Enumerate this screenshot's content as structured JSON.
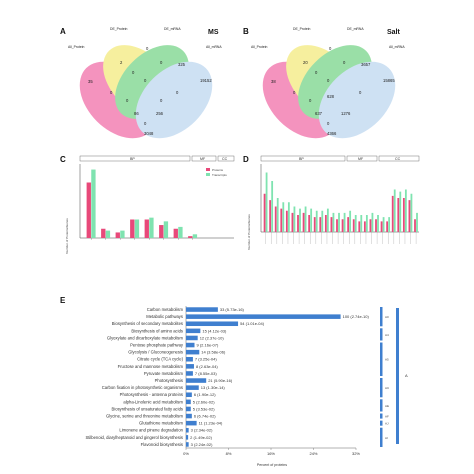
{
  "panel_letters": {
    "a": "A",
    "b": "B",
    "c": "C",
    "d": "D",
    "e": "E"
  },
  "colors": {
    "proteins_bar": "#e8497a",
    "transcripts_bar": "#7fe3b0",
    "pathway_bar": "#3f7fcf",
    "pink": "#f06aa6",
    "yellow": "#f3ea7a",
    "green": "#74d486",
    "blue": "#bcd6ef"
  },
  "venn_a": {
    "condition": "MS",
    "labels": {
      "all_proteins": "All_Protein",
      "de_protein": "DE_Protein",
      "de_mrna": "DE_mRNA",
      "all_mrna": "All_mRNA"
    },
    "numbers": {
      "n1": "35",
      "n2": "2",
      "n3": "0",
      "n4": "0",
      "n5": "0",
      "n6": "325",
      "n7": "19152",
      "n8": "0",
      "n9": "0",
      "n10": "0",
      "n11": "0",
      "n12": "0",
      "n13": "86",
      "n14": "256",
      "n15": "0",
      "n16": "3048"
    }
  },
  "venn_b": {
    "condition": "Salt",
    "labels": {
      "all_proteins": "All_Protein",
      "de_protein": "DE_Protein",
      "de_mrna": "DE_mRNA",
      "all_mrna": "All_mRNA"
    },
    "numbers": {
      "n1": "38",
      "n2": "20",
      "n3": "0",
      "n4": "0",
      "n5": "0",
      "n6": "3657",
      "n7": "15865",
      "n8": "0",
      "n9": "0",
      "n10": "0",
      "n11": "0",
      "n12": "628",
      "n13": "637",
      "n14": "1276",
      "n15": "0",
      "n16": "4366"
    }
  },
  "chart_data": [
    {
      "type": "bar",
      "panel": "C",
      "groups": [
        "BP",
        "MF",
        "CC"
      ],
      "ylabel": "Number of Proteins/Genes",
      "legend": [
        "Proteins",
        "Transcripts"
      ],
      "categories_count": 8,
      "series": [
        {
          "name": "Proteins",
          "values": [
            30,
            5,
            3,
            10,
            10,
            7,
            5,
            1
          ]
        },
        {
          "name": "Transcripts",
          "values": [
            37,
            4,
            4,
            10,
            11,
            9,
            6,
            2
          ]
        }
      ],
      "ylim": [
        0,
        40
      ]
    },
    {
      "type": "bar",
      "panel": "D",
      "groups": [
        "BP",
        "MF",
        "CC"
      ],
      "ylabel": "Number of Proteins/Genes",
      "categories_count": 28,
      "series": [
        {
          "name": "Proteins",
          "values": [
            18,
            15,
            12,
            11,
            10,
            9,
            8,
            9,
            8,
            7,
            7,
            8,
            7,
            6,
            6,
            7,
            6,
            5,
            5,
            6,
            6,
            5,
            5,
            17,
            16,
            16,
            15,
            6
          ]
        },
        {
          "name": "Transcripts",
          "values": [
            28,
            24,
            16,
            14,
            14,
            12,
            11,
            12,
            11,
            10,
            10,
            11,
            9,
            9,
            9,
            10,
            8,
            8,
            8,
            9,
            8,
            7,
            7,
            20,
            19,
            20,
            18,
            9
          ]
        }
      ],
      "ylim": [
        0,
        32
      ]
    },
    {
      "type": "bar",
      "panel": "E",
      "orientation": "horizontal",
      "categories": [
        "Carbon metabolism",
        "Metabolic pathways",
        "Biosynthesis of secondary metabolites",
        "Biosynthesis of amino acids",
        "Glyoxylate and dicarboxylate metabolism",
        "Pentose phosphate pathway",
        "Glycolysis / Gluconeogenesis",
        "Citrate cycle (TCA cycle)",
        "Fructose and mannose metabolism",
        "Pyruvate metabolism",
        "Photosynthesis",
        "Carbon fixation in photosynthetic organisms",
        "Photosynthesis - antenna proteins",
        "alpha-Linolenic acid metabolism",
        "Biosynthesis of unsaturated fatty acids",
        "Glycine, serine and threonine metabolism",
        "Glutathione metabolism",
        "Limonene and pinene degradation",
        "Stilbenoid, diarylheptanoid and gingerol biosynthesis",
        "Flavonoid biosynthesis"
      ],
      "value_labels": [
        "33 (5.73e-16)",
        "100 (2.74e-10)",
        "54 (1.01e-04)",
        "15 (4.12e-03)",
        "12 (2.37e-10)",
        "9 (2.16e-07)",
        "14 (3.58e-06)",
        "7 (3.25e-04)",
        "8 (2.63e-04)",
        "7 (8.55e-03)",
        "21 (5.90e-16)",
        "13 (1.30e-14)",
        "6 (1.90e-12)",
        "5 (2.60e-02)",
        "5 (3.53e-02)",
        "6 (6.74e-02)",
        "11 (1.23e-04)",
        "3 (2.34e-02)",
        "2 (1.49e-02)",
        "3 (2.24e-02)"
      ],
      "values": [
        6.0,
        29.1,
        9.8,
        2.7,
        2.2,
        1.6,
        2.5,
        1.3,
        1.5,
        1.3,
        3.8,
        2.4,
        1.1,
        0.9,
        0.9,
        1.1,
        2.0,
        0.5,
        0.4,
        0.5
      ],
      "xlabel": "Percent of proteins",
      "xticks": [
        "0%",
        "8%",
        "16%",
        "24%",
        "32%"
      ],
      "xlim": [
        0,
        32
      ],
      "groups": [
        {
          "label": "A",
          "sub": [
            "A0",
            "A4",
            "A5",
            "AC",
            "AE",
            "AF",
            "AJ",
            "AI"
          ]
        }
      ]
    }
  ]
}
